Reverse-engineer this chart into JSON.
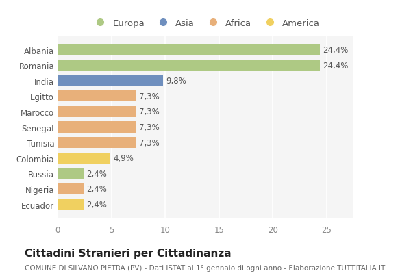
{
  "categories": [
    "Albania",
    "Romania",
    "India",
    "Egitto",
    "Marocco",
    "Senegal",
    "Tunisia",
    "Colombia",
    "Russia",
    "Nigeria",
    "Ecuador"
  ],
  "values": [
    24.4,
    24.4,
    9.8,
    7.3,
    7.3,
    7.3,
    7.3,
    4.9,
    2.4,
    2.4,
    2.4
  ],
  "labels": [
    "24,4%",
    "24,4%",
    "9,8%",
    "7,3%",
    "7,3%",
    "7,3%",
    "7,3%",
    "4,9%",
    "2,4%",
    "2,4%",
    "2,4%"
  ],
  "colors": [
    "#aec984",
    "#aec984",
    "#6f8fbe",
    "#e8b07a",
    "#e8b07a",
    "#e8b07a",
    "#e8b07a",
    "#f0d060",
    "#aec984",
    "#e8b07a",
    "#f0d060"
  ],
  "legend_labels": [
    "Europa",
    "Asia",
    "Africa",
    "America"
  ],
  "legend_colors": [
    "#aec984",
    "#6f8fbe",
    "#e8b07a",
    "#f0d060"
  ],
  "title": "Cittadini Stranieri per Cittadinanza",
  "subtitle": "COMUNE DI SILVANO PIETRA (PV) - Dati ISTAT al 1° gennaio di ogni anno - Elaborazione TUTTITALIA.IT",
  "xlim": [
    0,
    27.5
  ],
  "xticks": [
    0,
    5,
    10,
    15,
    20,
    25
  ],
  "background_color": "#ffffff",
  "plot_bg_color": "#f5f5f5",
  "grid_color": "#ffffff",
  "bar_height": 0.72,
  "title_fontsize": 11,
  "subtitle_fontsize": 7.5,
  "label_fontsize": 8.5,
  "tick_fontsize": 8.5,
  "legend_fontsize": 9.5
}
